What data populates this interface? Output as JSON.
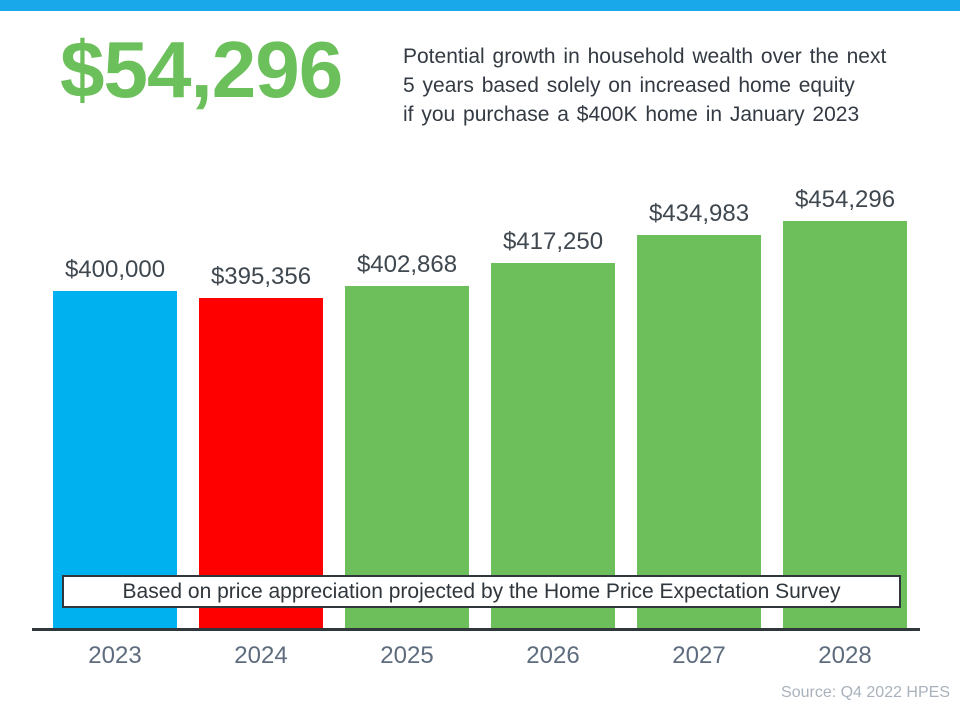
{
  "page": {
    "headline": "$54,296",
    "description_lines": [
      "Potential growth in household wealth over the next",
      "5 years based solely on increased home equity",
      "if you purchase a $400K home in January 2023"
    ]
  },
  "chart_data": {
    "type": "bar",
    "title": "Potential growth in household wealth over the next 5 years based solely on increased home equity if you purchase a $400K home in January 2023",
    "categories": [
      "2023",
      "2024",
      "2025",
      "2026",
      "2027",
      "2028"
    ],
    "values": [
      400000,
      395356,
      402868,
      417250,
      434983,
      454296
    ],
    "value_labels": [
      "$400,000",
      "$395,356",
      "$402,868",
      "$417,250",
      "$434,983",
      "$454,296"
    ],
    "bar_colors": [
      "#00B1F0",
      "#FF0000",
      "#6CBF5B",
      "#6CBF5B",
      "#6CBF5B",
      "#6CBF5B"
    ],
    "ylim": [
      187000,
      466000
    ],
    "grid": false,
    "legend": "none",
    "xlabel": "",
    "ylabel": "",
    "banner_note": "Based on price appreciation projected by the Home Price Expectation Survey",
    "source": "Source: Q4 2022 HPES"
  },
  "colors": {
    "accent_green": "#6CC05B",
    "top_strip": "#19A9EB",
    "bar_blue": "#00B1F0",
    "bar_red": "#FF0000",
    "bar_green": "#6CBF5B",
    "text_dark": "#333A43",
    "axis": "#2F363C",
    "year_label": "#5E6C7E",
    "source_gray": "#A9B2BC"
  }
}
